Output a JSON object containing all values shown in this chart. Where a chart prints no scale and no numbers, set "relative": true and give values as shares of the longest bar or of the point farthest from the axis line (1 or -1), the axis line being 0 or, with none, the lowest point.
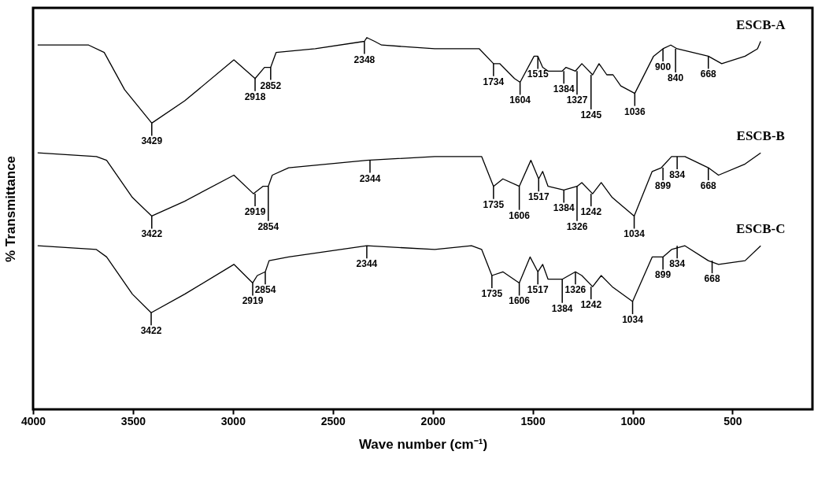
{
  "chart_data": {
    "type": "line",
    "relative": true,
    "xlabel": "Wave number (cm⁻¹)",
    "ylabel": "% Transmittance",
    "xlim": [
      4000,
      100
    ],
    "xticks": [
      4000,
      3500,
      3000,
      2500,
      2000,
      1500,
      1000,
      500
    ],
    "grid": false,
    "marker": "none",
    "line_style": "solid",
    "series": [
      {
        "name": "ESCB-A",
        "color": "#000000",
        "x": [
          3977,
          3722,
          3644,
          3542,
          3406,
          3241,
          2995,
          2889,
          2842,
          2811,
          2784,
          2588,
          2342,
          2330,
          2291,
          2256,
          1990,
          1767,
          1696,
          1665,
          1591,
          1563,
          1493,
          1474,
          1450,
          1423,
          1352,
          1333,
          1286,
          1254,
          1200,
          1168,
          1129,
          1098,
          1059,
          989,
          895,
          848,
          809,
          777,
          699,
          621,
          554,
          437,
          375,
          359
        ],
        "values": [
          0.98,
          0.98,
          0.96,
          0.86,
          0.77,
          0.83,
          0.94,
          0.89,
          0.92,
          0.92,
          0.96,
          0.97,
          0.99,
          1.0,
          0.99,
          0.98,
          0.97,
          0.97,
          0.93,
          0.93,
          0.89,
          0.88,
          0.95,
          0.95,
          0.92,
          0.91,
          0.91,
          0.92,
          0.91,
          0.93,
          0.9,
          0.93,
          0.9,
          0.9,
          0.87,
          0.85,
          0.95,
          0.97,
          0.98,
          0.97,
          0.96,
          0.95,
          0.93,
          0.95,
          0.97,
          0.99
        ]
      },
      {
        "name": "ESCB-B",
        "color": "#000000",
        "x": [
          3977,
          3683,
          3632,
          3503,
          3406,
          3241,
          2995,
          2897,
          2850,
          2823,
          2803,
          2721,
          2330,
          1990,
          1872,
          1755,
          1696,
          1649,
          1567,
          1509,
          1470,
          1450,
          1423,
          1344,
          1278,
          1254,
          1200,
          1157,
          1102,
          992,
          902,
          856,
          805,
          738,
          621,
          570,
          437,
          359
        ],
        "values": [
          0.69,
          0.68,
          0.67,
          0.57,
          0.52,
          0.56,
          0.63,
          0.58,
          0.6,
          0.6,
          0.63,
          0.65,
          0.67,
          0.68,
          0.68,
          0.68,
          0.6,
          0.62,
          0.6,
          0.67,
          0.62,
          0.64,
          0.6,
          0.59,
          0.6,
          0.61,
          0.58,
          0.61,
          0.57,
          0.52,
          0.64,
          0.65,
          0.68,
          0.68,
          0.65,
          0.63,
          0.66,
          0.69
        ]
      },
      {
        "name": "ESCB-C",
        "color": "#000000",
        "x": [
          3977,
          3683,
          3632,
          3503,
          3409,
          3241,
          2995,
          2901,
          2878,
          2838,
          2819,
          2721,
          2330,
          1990,
          1806,
          1755,
          1704,
          1649,
          1567,
          1513,
          1474,
          1450,
          1423,
          1352,
          1286,
          1254,
          1200,
          1157,
          1102,
          1000,
          902,
          848,
          805,
          738,
          621,
          570,
          437,
          359
        ],
        "values": [
          0.44,
          0.43,
          0.41,
          0.31,
          0.26,
          0.31,
          0.39,
          0.34,
          0.36,
          0.37,
          0.4,
          0.41,
          0.44,
          0.43,
          0.44,
          0.43,
          0.36,
          0.37,
          0.34,
          0.41,
          0.37,
          0.39,
          0.35,
          0.35,
          0.37,
          0.36,
          0.33,
          0.36,
          0.33,
          0.29,
          0.41,
          0.41,
          0.43,
          0.44,
          0.4,
          0.39,
          0.4,
          0.44
        ]
      }
    ],
    "annotations": [
      {
        "text": "3429",
        "x": 3406,
        "y": 0.77
      },
      {
        "text": "2918",
        "x": 2889,
        "y": 0.89
      },
      {
        "text": "2852",
        "x": 2811,
        "y": 0.92
      },
      {
        "text": "2348",
        "x": 2342,
        "y": 0.99
      },
      {
        "text": "1734",
        "x": 1696,
        "y": 0.93
      },
      {
        "text": "1604",
        "x": 1563,
        "y": 0.88
      },
      {
        "text": "1515",
        "x": 1474,
        "y": 0.95
      },
      {
        "text": "1384",
        "x": 1344,
        "y": 0.91
      },
      {
        "text": "1327",
        "x": 1278,
        "y": 0.91
      },
      {
        "text": "1245",
        "x": 1208,
        "y": 0.9
      },
      {
        "text": "1036",
        "x": 989,
        "y": 0.85
      },
      {
        "text": "900",
        "x": 848,
        "y": 0.97
      },
      {
        "text": "840",
        "x": 785,
        "y": 0.97
      },
      {
        "text": "668",
        "x": 621,
        "y": 0.95
      },
      {
        "text": "3422",
        "x": 3406,
        "y": 0.52
      },
      {
        "text": "2919",
        "x": 2889,
        "y": 0.58
      },
      {
        "text": "2854",
        "x": 2823,
        "y": 0.6
      },
      {
        "text": "2344",
        "x": 2314,
        "y": 0.67
      },
      {
        "text": "1735",
        "x": 1696,
        "y": 0.6
      },
      {
        "text": "1606",
        "x": 1567,
        "y": 0.6
      },
      {
        "text": "1517",
        "x": 1470,
        "y": 0.62
      },
      {
        "text": "1384",
        "x": 1344,
        "y": 0.59
      },
      {
        "text": "1326",
        "x": 1278,
        "y": 0.6
      },
      {
        "text": "1242",
        "x": 1208,
        "y": 0.58
      },
      {
        "text": "1034",
        "x": 992,
        "y": 0.52
      },
      {
        "text": "899",
        "x": 848,
        "y": 0.65
      },
      {
        "text": "834",
        "x": 777,
        "y": 0.68
      },
      {
        "text": "668",
        "x": 621,
        "y": 0.65
      },
      {
        "text": "3422",
        "x": 3409,
        "y": 0.26
      },
      {
        "text": "2919",
        "x": 2901,
        "y": 0.34
      },
      {
        "text": "2854",
        "x": 2838,
        "y": 0.37
      },
      {
        "text": "2344",
        "x": 2330,
        "y": 0.44
      },
      {
        "text": "1735",
        "x": 1704,
        "y": 0.36
      },
      {
        "text": "1606",
        "x": 1567,
        "y": 0.34
      },
      {
        "text": "1517",
        "x": 1474,
        "y": 0.37
      },
      {
        "text": "1384",
        "x": 1352,
        "y": 0.35
      },
      {
        "text": "1326",
        "x": 1286,
        "y": 0.37
      },
      {
        "text": "1242",
        "x": 1208,
        "y": 0.33
      },
      {
        "text": "1034",
        "x": 1000,
        "y": 0.29
      },
      {
        "text": "899",
        "x": 848,
        "y": 0.41
      },
      {
        "text": "834",
        "x": 777,
        "y": 0.44
      },
      {
        "text": "668",
        "x": 602,
        "y": 0.4
      }
    ]
  }
}
